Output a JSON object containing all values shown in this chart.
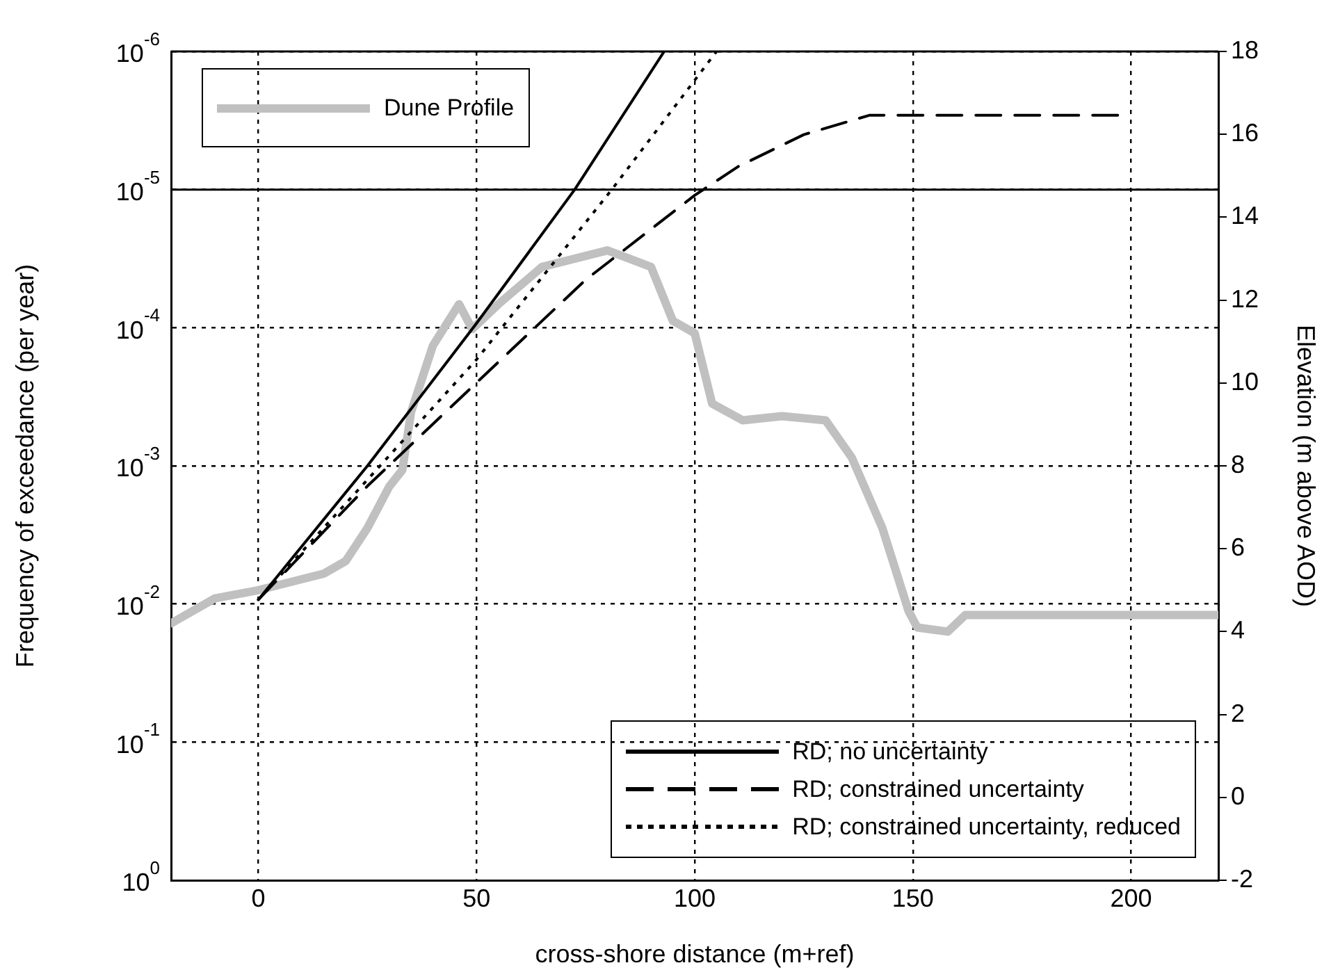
{
  "chart_data": {
    "type": "line",
    "xlabel": "cross-shore distance (m+ref)",
    "ylabel": "Frequency of exceedance (per year)",
    "y2label": "Elevation (m above AOD)",
    "xlim": [
      -20,
      220
    ],
    "xticks": [
      0,
      50,
      100,
      150,
      200
    ],
    "ylim": [
      1,
      1e-06
    ],
    "log": "y",
    "yticks": [
      {
        "value": 1e-06,
        "label": "10$^{-6}$"
      },
      {
        "value": 1e-05,
        "label": "10$^{-5}$"
      },
      {
        "value": 0.0001,
        "label": "10$^{-4}$"
      },
      {
        "value": 0.001,
        "label": "10$^{-3}$"
      },
      {
        "value": 0.01,
        "label": "10$^{-2}$"
      },
      {
        "value": 0.1,
        "label": "10$^{-1}$"
      },
      {
        "value": 1,
        "label": "10$^{0}$"
      }
    ],
    "y2lim": [
      -2,
      18
    ],
    "y2ticks": [
      -2,
      0,
      2,
      4,
      6,
      8,
      10,
      12,
      14,
      16,
      18
    ],
    "grid": true,
    "legend": "bottom right",
    "marker": "none",
    "ref_lines": [
      {
        "axis": "y",
        "value": 1e-05,
        "color": "#000000",
        "line_style": "solid"
      }
    ],
    "series": [
      {
        "name": "Dune Profile",
        "color": "#c0c0c0",
        "axis": "y2",
        "line_style": "solid",
        "x": [
          -20,
          -10,
          0,
          15,
          20,
          25,
          30,
          33,
          35,
          40,
          46,
          49,
          55,
          65,
          80,
          90,
          95,
          100,
          104,
          111,
          120,
          130,
          136,
          143,
          149,
          151,
          158,
          162,
          220
        ],
        "values": [
          4.2,
          4.8,
          5.0,
          5.4,
          5.7,
          6.5,
          7.5,
          7.9,
          9.3,
          10.9,
          11.9,
          11.3,
          11.9,
          12.8,
          13.2,
          12.8,
          11.5,
          11.2,
          9.5,
          9.1,
          9.2,
          9.1,
          8.2,
          6.5,
          4.5,
          4.1,
          4.0,
          4.4,
          4.4
        ]
      },
      {
        "name": "RD; no uncertainty",
        "color": "#000000",
        "line_style": "solid",
        "x": [
          0,
          25,
          50,
          72.5,
          93
        ],
        "values": [
          0.0093,
          0.001,
          9.3e-05,
          1e-05,
          1e-06
        ]
      },
      {
        "name": "RD; constrained uncertainty",
        "color": "#000000",
        "line_style": "dashed",
        "x": [
          0,
          25,
          50,
          75,
          100,
          110,
          125,
          140,
          200
        ],
        "values": [
          0.0093,
          0.0014,
          0.00025,
          4.5e-05,
          1.1e-05,
          6.8e-06,
          4e-06,
          2.9e-06,
          2.9e-06
        ]
      },
      {
        "name": "RD; constrained uncertainty, reduced",
        "color": "#000000",
        "line_style": "dotted",
        "x": [
          0,
          25,
          50,
          81,
          105
        ],
        "values": [
          0.0093,
          0.00126,
          0.00017,
          1e-05,
          1e-06
        ]
      }
    ]
  }
}
